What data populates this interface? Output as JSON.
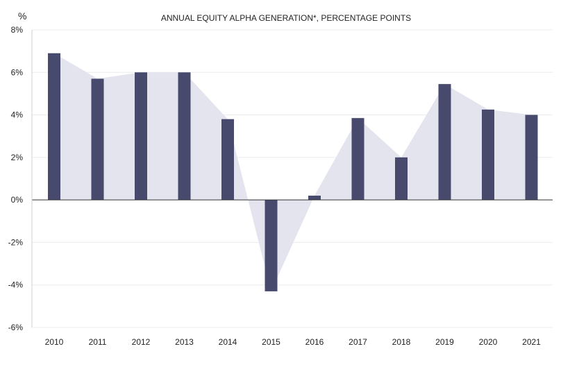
{
  "chart_data": {
    "type": "bar",
    "title": "ANNUAL EQUITY ALPHA GENERATION*, PERCENTAGE POINTS",
    "unit_label": "%",
    "xlabel": "",
    "ylabel": "%",
    "categories": [
      "2010",
      "2011",
      "2012",
      "2013",
      "2014",
      "2015",
      "2016",
      "2017",
      "2018",
      "2019",
      "2020",
      "2021"
    ],
    "values": [
      6.9,
      5.7,
      6.0,
      6.0,
      3.8,
      -4.3,
      0.2,
      3.85,
      2.0,
      5.45,
      4.25,
      4.0
    ],
    "ylim": [
      -6,
      8
    ],
    "yticks": [
      8,
      6,
      4,
      2,
      0,
      -2,
      -4,
      -6
    ],
    "ytick_labels": [
      "8%",
      "6%",
      "4%",
      "2%",
      "0%",
      "-2%",
      "-4%",
      "-6%"
    ],
    "grid": true,
    "area_overlay": true,
    "colors": {
      "bar": "#474a6c",
      "area": "#e4e4ef",
      "grid": "#ececec",
      "axis": "#333333"
    }
  }
}
